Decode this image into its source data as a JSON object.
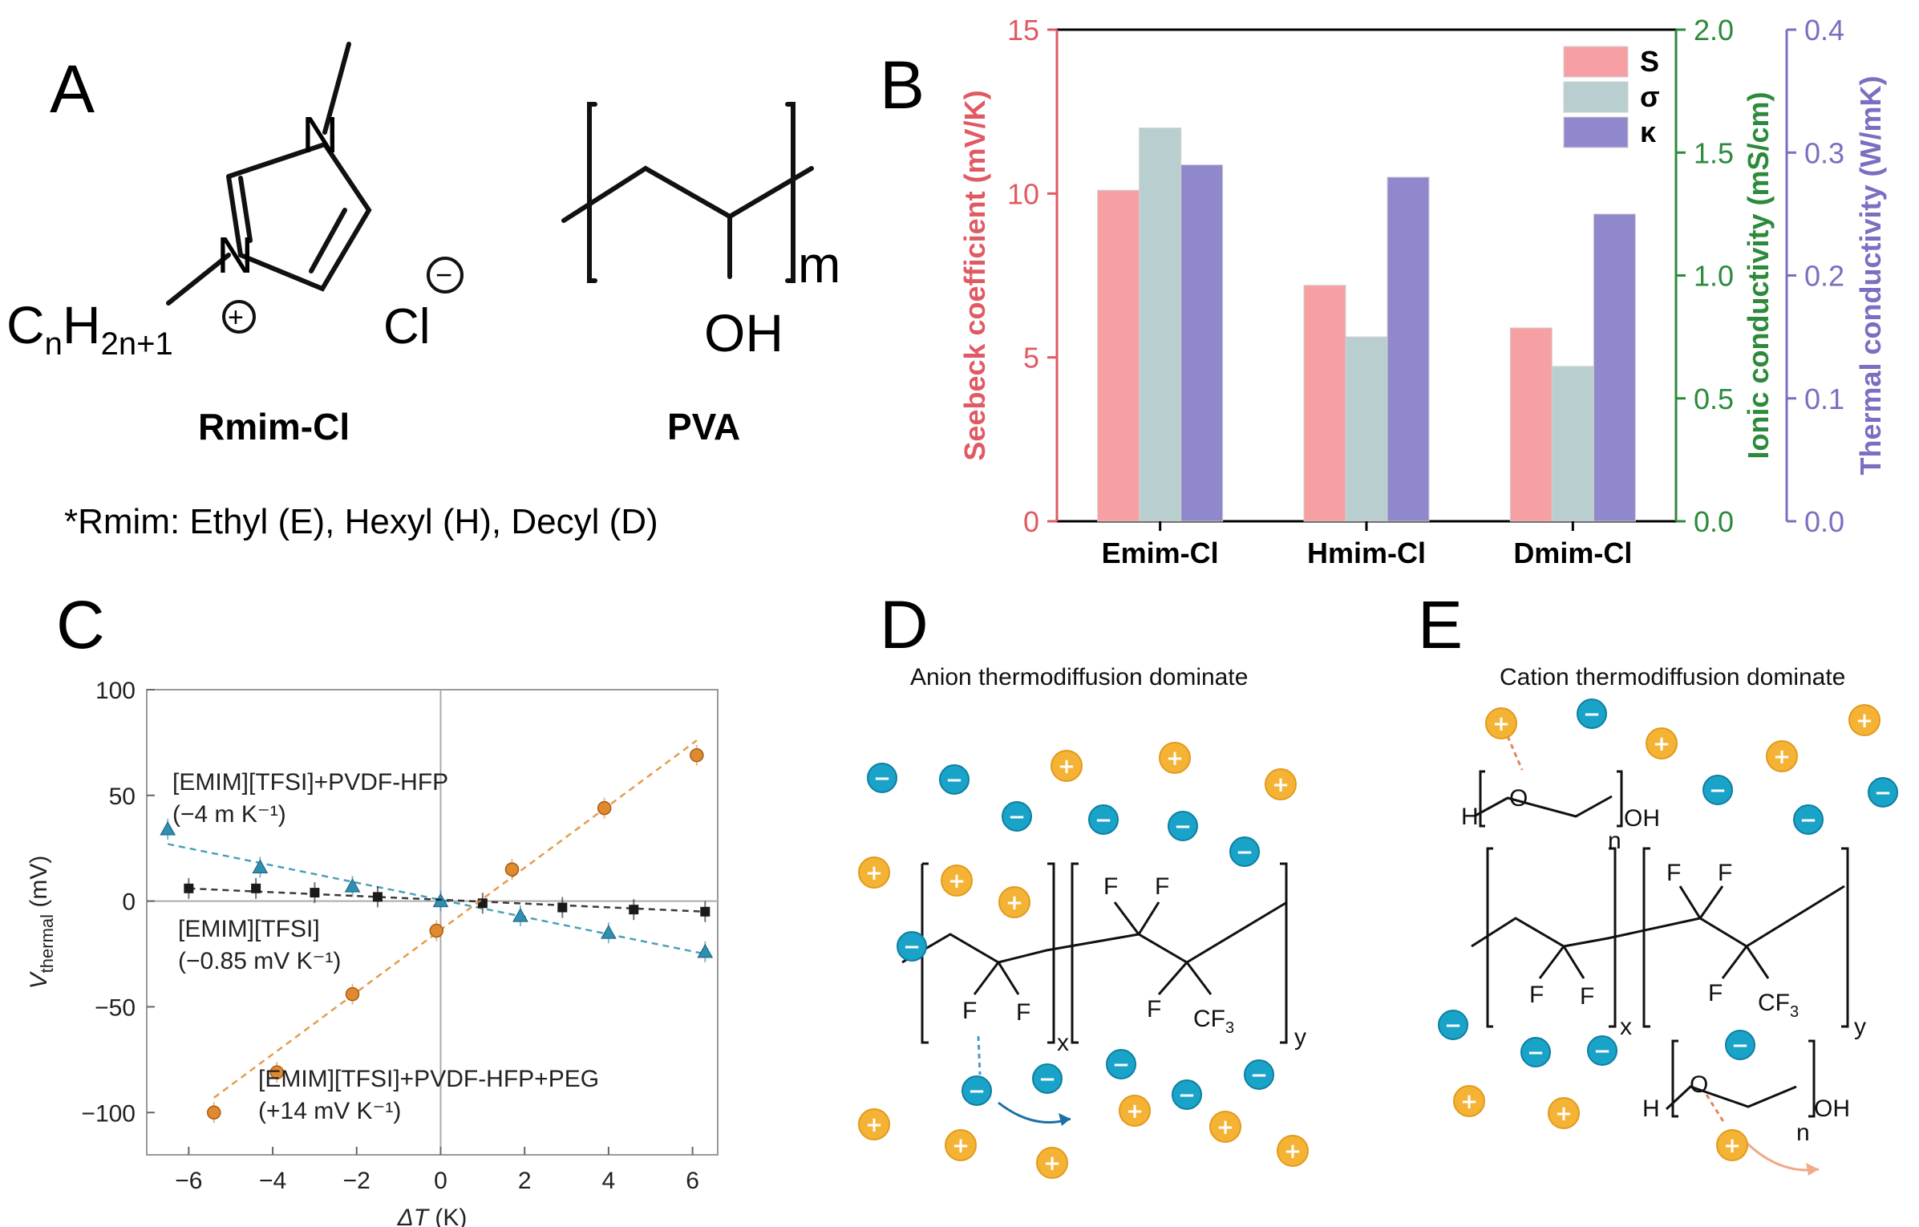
{
  "panels": {
    "a": {
      "label": "A",
      "rmim_name": "Rmim-Cl",
      "pva_name": "PVA",
      "atom_n1": "N",
      "atom_n2": "N",
      "chain_c": "C",
      "chain_n": "n",
      "chain_h": "H",
      "chain_2n1": "2n+1",
      "plus_sign": "+",
      "minus_sign": "−",
      "chloride": "Cl",
      "oh": "OH",
      "repeat_m": "m",
      "footnote": "*Rmim: Ethyl (E), Hexyl (H), Decyl (D)"
    },
    "b": {
      "label": "B"
    },
    "c": {
      "label": "C"
    },
    "d": {
      "label": "D",
      "title": "Anion thermodiffusion dominate",
      "f1": "F",
      "f2": "F",
      "f3": "F",
      "f4": "F",
      "f5": "F",
      "cf3_main": "CF",
      "cf3_sub": "3",
      "sub_x": "x",
      "sub_y": "y",
      "plus_sign": "+",
      "minus_sign": "−"
    },
    "e": {
      "label": "E",
      "title": "Cation thermodiffusion dominate",
      "peg_h": "H",
      "peg_o": "O",
      "peg_oh": "OH",
      "peg_n": "n",
      "f1": "F",
      "f2": "F",
      "f3": "F",
      "f4": "F",
      "f5": "F",
      "cf3_main": "CF",
      "cf3_sub": "3",
      "sub_x": "x",
      "sub_y": "y"
    }
  },
  "colors": {
    "seebeck_axis": "#e05a63",
    "ionic_axis": "#2d8a3c",
    "thermal_axis": "#7a6fc0",
    "bar_s": "#f7a0a3",
    "bar_sigma": "#b9cfcf",
    "bar_kappa": "#9088cc",
    "anion": "#1aa3c9",
    "cation": "#f5b335",
    "series_black": "#1a1a1a",
    "series_blue": "#2e8fb0",
    "series_orange": "#e08a30"
  },
  "chart_data": [
    {
      "panel": "B",
      "type": "bar",
      "categories": [
        "Emim-Cl",
        "Hmim-Cl",
        "Dmim-Cl"
      ],
      "series": [
        {
          "name": "S",
          "axis": "Seebeck coefficient (mV/K)",
          "values": [
            10.1,
            7.2,
            5.9
          ]
        },
        {
          "name": "σ",
          "axis": "Ionic conductivity (mS/cm)",
          "values": [
            1.6,
            0.75,
            0.63
          ]
        },
        {
          "name": "κ",
          "axis": "Thermal conductivity (W/mK)",
          "values": [
            0.29,
            0.28,
            0.25
          ]
        }
      ],
      "axes": [
        {
          "label": "Seebeck coefficient (mV/K)",
          "range": [
            0,
            15
          ],
          "ticks": [
            "0",
            "5",
            "10",
            "15"
          ],
          "tick_values": [
            0,
            5,
            10,
            15
          ]
        },
        {
          "label": "Ionic conductivity (mS/cm)",
          "range": [
            0,
            2
          ],
          "ticks": [
            "0.0",
            "0.5",
            "1.0",
            "1.5",
            "2.0"
          ],
          "tick_values": [
            0,
            0.5,
            1,
            1.5,
            2
          ]
        },
        {
          "label": "Thermal conductivity (W/mK)",
          "range": [
            0,
            0.4
          ],
          "ticks": [
            "0.0",
            "0.1",
            "0.2",
            "0.3",
            "0.4"
          ],
          "tick_values": [
            0,
            0.1,
            0.2,
            0.3,
            0.4
          ]
        }
      ],
      "legend": [
        "S",
        "σ",
        "κ"
      ]
    },
    {
      "panel": "C",
      "type": "scatter",
      "xlabel_main": "ΔT",
      "xlabel_unit": " (K)",
      "ylabel_main": "V",
      "ylabel_sub": "thermal",
      "ylabel_unit": " (mV)",
      "xlim": [
        -7,
        6.6
      ],
      "ylim": [
        -120,
        100
      ],
      "xticks": [
        "−6",
        "−4",
        "−2",
        "0",
        "2",
        "4",
        "6"
      ],
      "xtick_values": [
        -6,
        -4,
        -2,
        0,
        2,
        4,
        6
      ],
      "yticks": [
        "100",
        "50",
        "0",
        "−50",
        "−100"
      ],
      "ytick_values": [
        100,
        50,
        0,
        -50,
        -100
      ],
      "series": [
        {
          "name": "[EMIM][TFSI]+PVDF-HFP",
          "slope_label": "(−4 m K⁻¹)",
          "marker": "triangle",
          "x": [
            -6.5,
            -4.3,
            -2.1,
            0,
            1.9,
            4,
            6.3
          ],
          "y": [
            34,
            16,
            7,
            0,
            -7,
            -15,
            -24
          ],
          "fit": {
            "x": [
              -6.5,
              6.3
            ],
            "y": [
              27,
              -25
            ]
          }
        },
        {
          "name": "[EMIM][TFSI]",
          "slope_label": "(−0.85 mV K⁻¹)",
          "marker": "square",
          "x": [
            -6,
            -4.4,
            -3,
            -1.5,
            1,
            2.9,
            4.6,
            6.3
          ],
          "y": [
            6,
            6,
            4,
            2,
            -1,
            -3,
            -4,
            -5
          ],
          "fit": {
            "x": [
              -6,
              6.3
            ],
            "y": [
              6,
              -5
            ]
          }
        },
        {
          "name": "[EMIM][TFSI]+PVDF-HFP+PEG",
          "slope_label": "(+14 mV K⁻¹)",
          "marker": "circle",
          "x": [
            -5.4,
            -3.9,
            -2.1,
            -0.1,
            1.7,
            3.9,
            6.1
          ],
          "y": [
            -100,
            -81,
            -44,
            -14,
            15,
            44,
            69
          ],
          "fit": {
            "x": [
              -5.4,
              6.1
            ],
            "y": [
              -93,
              76
            ]
          }
        }
      ]
    }
  ]
}
